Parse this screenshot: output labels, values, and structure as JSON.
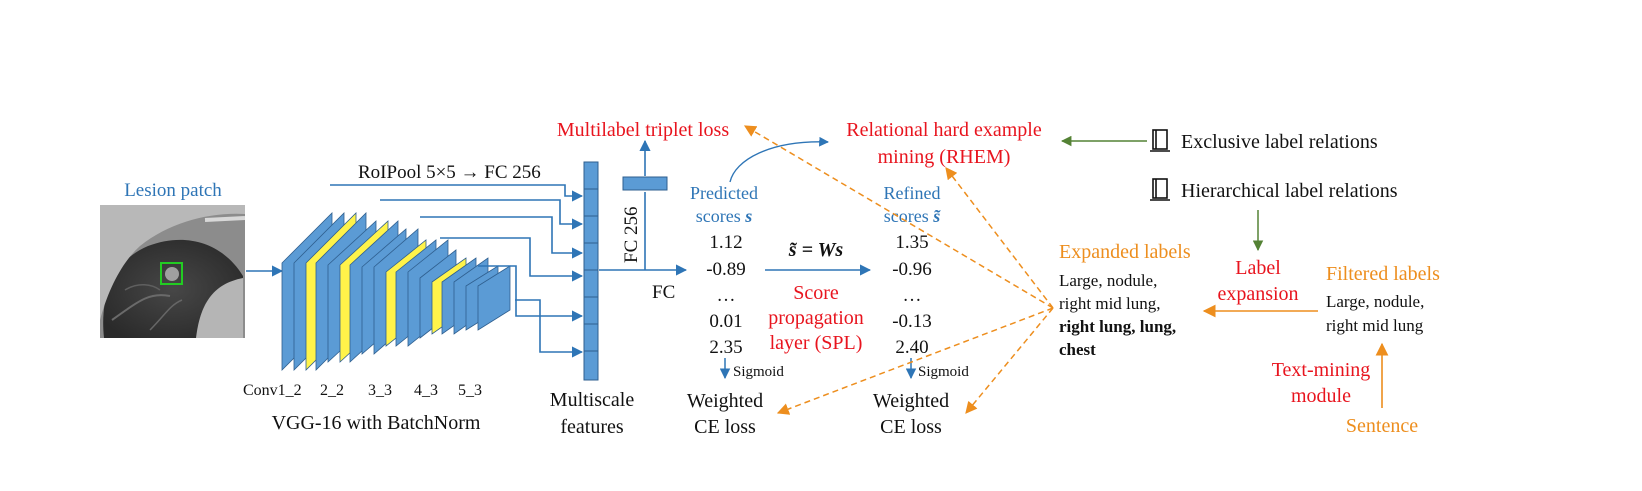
{
  "colors": {
    "blue_text": "#2E75B6",
    "red_text": "#E8141E",
    "orange_text": "#ED8E1E",
    "layer_blue": "#5B9BD5",
    "layer_edge": "#2F5F8F",
    "layer_yellow": "#FFF34A",
    "green_arrow": "#548235",
    "roi_box": "#22CC22"
  },
  "input": {
    "title": "Lesion patch"
  },
  "backbone": {
    "roipool_label": "RoIPool 5×5 → FC 256",
    "layer_labels": [
      "Conv1_2",
      "2_2",
      "3_3",
      "4_3",
      "5_3"
    ],
    "caption": "VGG-16 with BatchNorm"
  },
  "multiscale": {
    "caption_line1": "Multiscale",
    "caption_line2": "features"
  },
  "fc256_label": "FC 256",
  "fc_label": "FC",
  "losses": {
    "triplet": "Multilabel triplet loss",
    "rhem_line1": "Relational hard example",
    "rhem_line2": "mining (RHEM)",
    "ce_left_line1": "Weighted",
    "ce_left_line2": "CE loss",
    "ce_right_line1": "Weighted",
    "ce_right_line2": "CE loss"
  },
  "predicted": {
    "header_line1": "Predicted",
    "header_line2_text": "scores ",
    "header_line2_symbol": "s",
    "values": [
      "1.12",
      "-0.89",
      "…",
      "0.01",
      "2.35"
    ],
    "activation": "Sigmoid"
  },
  "refined": {
    "header_line1": "Refined",
    "header_line2_text": "scores ",
    "header_line2_symbol": "s̃",
    "values": [
      "1.35",
      "-0.96",
      "…",
      "-0.13",
      "2.40"
    ],
    "activation": "Sigmoid"
  },
  "spl": {
    "equation": "s̃ = Ws",
    "label_line1": "Score",
    "label_line2": "propagation",
    "label_line3": "layer (SPL)"
  },
  "relations": {
    "exclusive": "Exclusive label relations",
    "hierarchical": "Hierarchical label relations",
    "icon": "book-icon"
  },
  "label_pipeline": {
    "expansion_line1": "Label",
    "expansion_line2": "expansion",
    "expanded_title": "Expanded labels",
    "expanded_line1": "Large, nodule,",
    "expanded_line2": "right mid lung,",
    "expanded_line3": "right lung, lung,",
    "expanded_line4": "chest",
    "filtered_title": "Filtered labels",
    "filtered_line1": "Large, nodule,",
    "filtered_line2": "right mid lung",
    "textmining_line1": "Text-mining",
    "textmining_line2": "module",
    "sentence": "Sentence"
  }
}
